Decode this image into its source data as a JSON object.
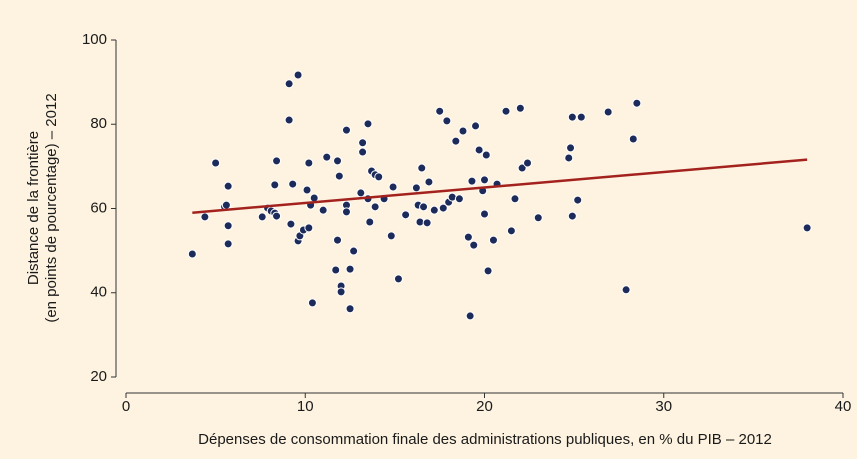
{
  "chart_data": {
    "type": "scatter",
    "x_label": "Dépenses de consommation finale des administrations publiques, en % du PIB – 2012",
    "y_label": [
      "Distance de la frontière",
      "(en points de pourcentage) – 2012"
    ],
    "xlim": [
      0,
      40
    ],
    "xticks": [
      0,
      10,
      20,
      30,
      40
    ],
    "ylim": [
      20,
      100
    ],
    "yticks": [
      20,
      40,
      60,
      80,
      100
    ],
    "color": "#1c2b5a",
    "x": [
      3.7,
      4.4,
      5.0,
      5.5,
      5.6,
      5.7,
      5.7,
      5.7,
      7.6,
      7.9,
      8.1,
      8.3,
      8.4,
      8.3,
      8.4,
      9.1,
      9.6,
      9.1,
      9.3,
      9.2,
      9.6,
      9.7,
      9.9,
      10.2,
      10.1,
      10.2,
      10.3,
      10.5,
      10.4,
      11.0,
      11.2,
      11.7,
      11.8,
      11.9,
      11.8,
      12.0,
      12.0,
      12.3,
      12.3,
      12.3,
      12.5,
      12.5,
      12.7,
      13.1,
      13.2,
      13.2,
      13.5,
      13.5,
      13.6,
      13.7,
      13.9,
      14.1,
      13.9,
      14.4,
      14.8,
      14.9,
      15.2,
      15.6,
      16.2,
      16.3,
      16.4,
      16.5,
      16.6,
      16.8,
      16.9,
      17.2,
      17.5,
      17.7,
      17.9,
      18.0,
      18.2,
      18.4,
      18.6,
      18.8,
      19.1,
      19.2,
      19.4,
      19.3,
      19.5,
      19.7,
      19.9,
      20.0,
      20.0,
      20.1,
      20.2,
      20.5,
      20.7,
      21.2,
      21.5,
      21.7,
      22.0,
      22.1,
      22.4,
      23.0,
      24.7,
      24.8,
      24.9,
      24.9,
      25.2,
      25.4,
      26.9,
      27.9,
      28.3,
      28.5,
      38.0
    ],
    "y": [
      49.2,
      58.0,
      70.8,
      60.4,
      60.8,
      65.3,
      55.9,
      51.6,
      58.0,
      60.1,
      59.4,
      58.9,
      58.2,
      65.6,
      71.3,
      89.6,
      91.7,
      81.0,
      65.8,
      56.3,
      52.3,
      53.5,
      54.9,
      55.4,
      64.4,
      70.8,
      60.8,
      62.5,
      37.6,
      59.6,
      72.2,
      45.4,
      71.3,
      67.7,
      52.5,
      41.6,
      40.2,
      78.6,
      60.8,
      59.2,
      36.2,
      45.6,
      49.9,
      63.7,
      75.6,
      73.4,
      80.1,
      62.3,
      56.8,
      68.9,
      68.0,
      67.5,
      60.4,
      62.3,
      53.5,
      65.1,
      43.3,
      58.5,
      64.9,
      60.8,
      56.8,
      69.6,
      60.4,
      56.6,
      66.3,
      59.6,
      83.1,
      60.1,
      80.8,
      61.5,
      62.7,
      76.0,
      62.3,
      78.4,
      53.2,
      34.5,
      51.3,
      66.5,
      79.6,
      73.9,
      64.2,
      66.8,
      58.7,
      72.7,
      45.2,
      52.5,
      65.8,
      83.1,
      54.7,
      62.3,
      83.8,
      69.6,
      70.8,
      57.8,
      72.0,
      74.4,
      81.7,
      58.2,
      62.0,
      81.7,
      82.9,
      40.7,
      76.5,
      85.0,
      55.4
    ],
    "trend_line": {
      "color": "#a4221e",
      "x": [
        3.7,
        38.0
      ],
      "y": [
        59.0,
        71.6
      ]
    }
  }
}
